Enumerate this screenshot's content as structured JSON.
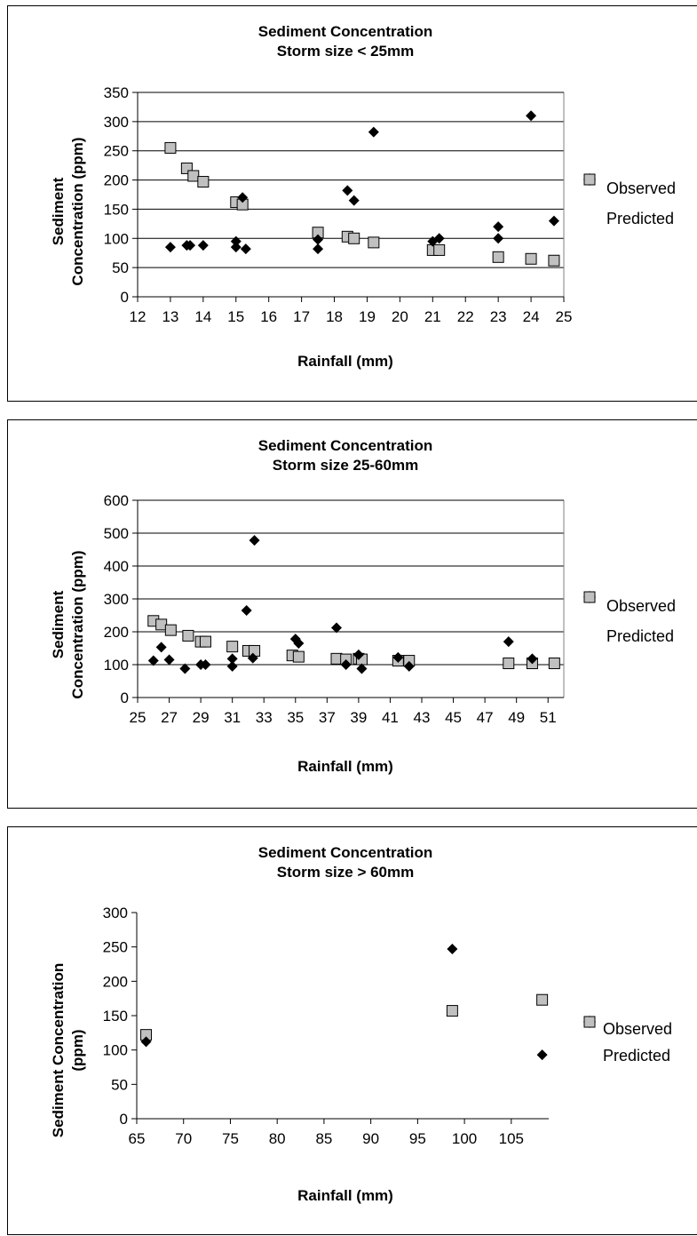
{
  "chart_data": [
    {
      "type": "scatter",
      "title": "Sediment Concentration",
      "subtitle": "Storm size < 25mm",
      "xlabel": "Rainfall (mm)",
      "ylabel_lines": [
        "Sediment",
        "Concentration (ppm)"
      ],
      "xlim": [
        12,
        25
      ],
      "ylim": [
        0,
        350
      ],
      "xticks": [
        12,
        13,
        14,
        15,
        16,
        17,
        18,
        19,
        20,
        21,
        22,
        23,
        24,
        25
      ],
      "yticks": [
        0,
        50,
        100,
        150,
        200,
        250,
        300,
        350
      ],
      "grid": "horizontal",
      "legend_placement": "right",
      "series": [
        {
          "name": "Observed",
          "marker": "diamond",
          "color": "#000000",
          "x": [
            13,
            13.5,
            13.6,
            14,
            15,
            15,
            15.2,
            15.3,
            17.5,
            17.5,
            18.4,
            18.6,
            19.2,
            21,
            21.2,
            23,
            23,
            24,
            24.7
          ],
          "y": [
            85,
            88,
            88,
            88,
            95,
            85,
            170,
            82,
            98,
            82,
            182,
            165,
            282,
            95,
            100,
            120,
            100,
            310,
            130
          ]
        },
        {
          "name": "Predicted",
          "marker": "square",
          "color": "#c0c0c0",
          "x": [
            13,
            13.5,
            13.7,
            14,
            15,
            15.2,
            17.5,
            18.4,
            18.6,
            19.2,
            21,
            21.2,
            23,
            24,
            24.7
          ],
          "y": [
            255,
            220,
            207,
            197,
            162,
            158,
            110,
            103,
            100,
            93,
            80,
            80,
            68,
            65,
            62
          ]
        }
      ]
    },
    {
      "type": "scatter",
      "title": "Sediment Concentration",
      "subtitle": "Storm size 25-60mm",
      "xlabel": "Rainfall (mm)",
      "ylabel_lines": [
        "Sediment",
        "Concentration (ppm)"
      ],
      "xlim": [
        25,
        52
      ],
      "ylim": [
        0,
        600
      ],
      "xticks": [
        25,
        27,
        29,
        31,
        33,
        35,
        37,
        39,
        41,
        43,
        45,
        47,
        49,
        51
      ],
      "yticks": [
        0,
        100,
        200,
        300,
        400,
        500,
        600
      ],
      "grid": "horizontal",
      "legend_placement": "right",
      "series": [
        {
          "name": "Observed",
          "marker": "diamond",
          "color": "#000000",
          "x": [
            26,
            26.5,
            27,
            28,
            29,
            29.3,
            31,
            31,
            31.9,
            32.4,
            32.3,
            35,
            35.2,
            37.6,
            38.2,
            39,
            39.2,
            41.5,
            42.2,
            48.5,
            50
          ],
          "y": [
            112,
            153,
            115,
            88,
            100,
            100,
            95,
            118,
            265,
            478,
            120,
            178,
            165,
            212,
            100,
            130,
            88,
            122,
            95,
            170,
            118
          ]
        },
        {
          "name": "Predicted",
          "marker": "square",
          "color": "#c0c0c0",
          "x": [
            26,
            26.5,
            27.1,
            28.2,
            29,
            29.3,
            31,
            32,
            32.4,
            34.8,
            35.2,
            37.6,
            38.2,
            39,
            39.2,
            41.5,
            42.2,
            48.5,
            50,
            51.4
          ],
          "y": [
            233,
            222,
            205,
            188,
            170,
            170,
            155,
            142,
            142,
            128,
            124,
            118,
            116,
            118,
            116,
            112,
            112,
            104,
            104,
            104
          ]
        }
      ]
    },
    {
      "type": "scatter",
      "title": "Sediment Concentration",
      "subtitle": "Storm size > 60mm",
      "xlabel": "Rainfall (mm)",
      "ylabel_lines": [
        "Sediment Concentration",
        "(ppm)"
      ],
      "xlim": [
        65,
        109
      ],
      "ylim": [
        0,
        300
      ],
      "xticks": [
        65,
        70,
        75,
        80,
        85,
        90,
        95,
        100,
        105
      ],
      "yticks": [
        0,
        50,
        100,
        150,
        200,
        250,
        300
      ],
      "grid": "none",
      "legend_placement": "right",
      "series": [
        {
          "name": "Observed",
          "marker": "diamond",
          "color": "#000000",
          "x": [
            66,
            98.7,
            108.3
          ],
          "y": [
            112,
            247,
            93
          ]
        },
        {
          "name": "Predicted",
          "marker": "square",
          "color": "#c0c0c0",
          "x": [
            66,
            98.7,
            108.3
          ],
          "y": [
            122,
            157,
            173
          ]
        }
      ]
    }
  ]
}
